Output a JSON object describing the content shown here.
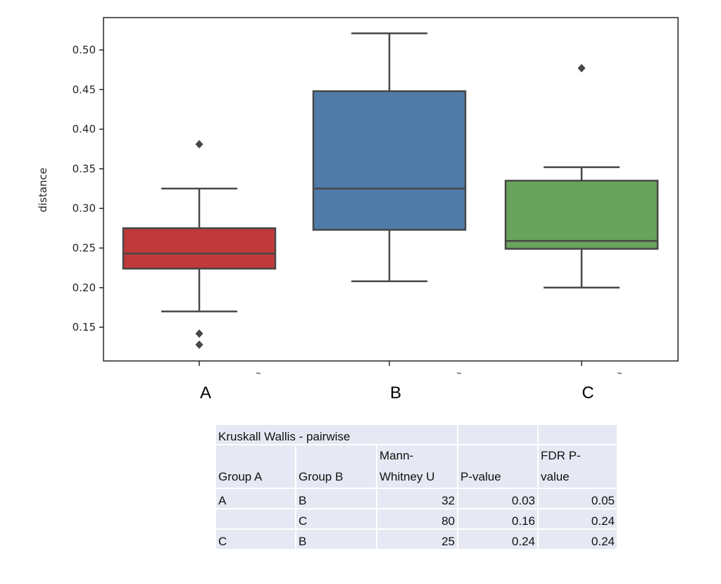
{
  "chart_data": {
    "type": "box",
    "ylabel": "distance",
    "xlabel": "",
    "ylim": [
      0.11,
      0.54
    ],
    "yticks": [
      "0.15",
      "0.20",
      "0.25",
      "0.30",
      "0.35",
      "0.40",
      "0.45",
      "0.50"
    ],
    "grid": false,
    "categories": [
      "A",
      "B",
      "C"
    ],
    "boxes": [
      {
        "category": "A",
        "color": "#c0393b",
        "whisker_low": 0.17,
        "q1": 0.224,
        "median": 0.243,
        "q3": 0.275,
        "whisker_high": 0.325,
        "outliers": [
          0.381,
          0.142,
          0.128
        ]
      },
      {
        "category": "B",
        "color": "#4f7ba8",
        "whisker_low": 0.208,
        "q1": 0.273,
        "median": 0.325,
        "q3": 0.448,
        "whisker_high": 0.521,
        "outliers": []
      },
      {
        "category": "C",
        "color": "#69a35c",
        "whisker_low": 0.2,
        "q1": 0.249,
        "median": 0.259,
        "q3": 0.335,
        "whisker_high": 0.352,
        "outliers": [
          0.477
        ]
      }
    ]
  },
  "table": {
    "title": "Kruskall Wallis - pairwise",
    "headers": [
      "Group A",
      "Group B",
      "Mann-Whitney U",
      "P-value",
      "FDR P-value"
    ],
    "header_lines": [
      [
        "",
        "",
        "Mann-",
        "",
        "FDR P-"
      ],
      [
        "Group A",
        "Group B",
        "Whitney U",
        "P-value",
        "value"
      ]
    ],
    "rows": [
      [
        "A",
        "B",
        "32",
        "0.03",
        "0.05"
      ],
      [
        "",
        "C",
        "80",
        "0.16",
        "0.24"
      ],
      [
        "C",
        "B",
        "25",
        "0.24",
        "0.24"
      ]
    ]
  }
}
